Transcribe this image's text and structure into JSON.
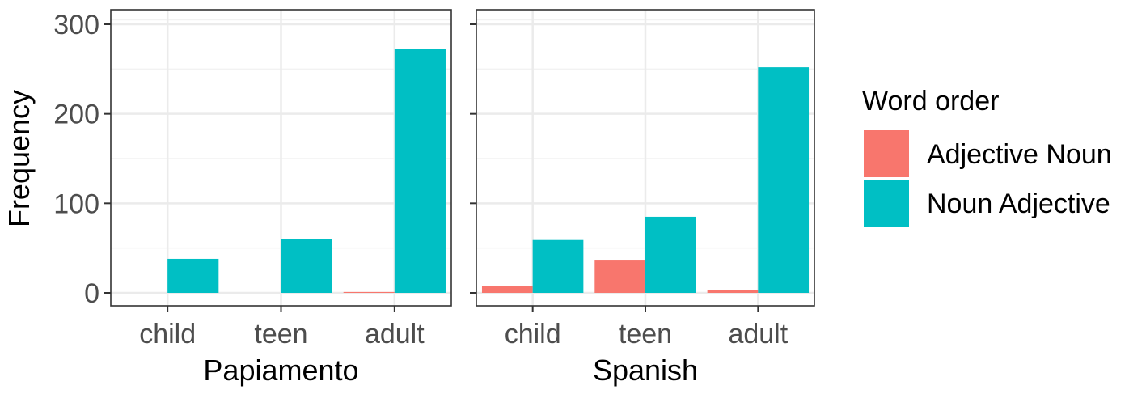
{
  "chart_data": {
    "type": "bar",
    "ylabel": "Frequency",
    "ylim": [
      0,
      310
    ],
    "yticks": [
      0,
      100,
      200,
      300
    ],
    "categories": [
      "child",
      "teen",
      "adult"
    ],
    "grid": true,
    "legend": {
      "title": "Word order",
      "position": "right",
      "entries": [
        {
          "label": "Adjective Noun",
          "color": "#F8766D"
        },
        {
          "label": "Noun Adjective",
          "color": "#00BFC4"
        }
      ]
    },
    "panels": [
      {
        "xlabel": "Papiamento",
        "series": [
          {
            "name": "Adjective Noun",
            "values": [
              0,
              0,
              1
            ]
          },
          {
            "name": "Noun Adjective",
            "values": [
              38,
              60,
              272
            ]
          }
        ]
      },
      {
        "xlabel": "Spanish",
        "series": [
          {
            "name": "Adjective Noun",
            "values": [
              8,
              37,
              3
            ]
          },
          {
            "name": "Noun Adjective",
            "values": [
              59,
              85,
              252
            ]
          }
        ]
      }
    ]
  }
}
